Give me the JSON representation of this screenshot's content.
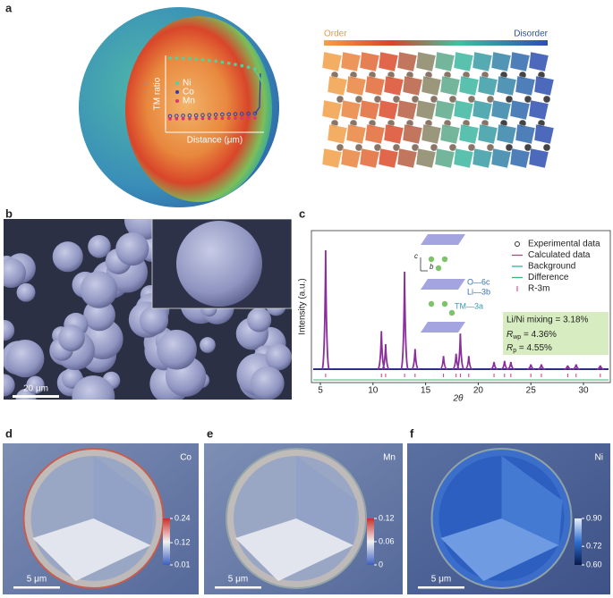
{
  "panels": {
    "a": {
      "label": "a",
      "inset": {
        "y_label": "TM ratio",
        "x_label": "Distance (μm)",
        "legend": [
          {
            "name": "Ni",
            "color": "#4fd1a0"
          },
          {
            "name": "Co",
            "color": "#2a3fb0"
          },
          {
            "name": "Mn",
            "color": "#e0307a"
          }
        ]
      },
      "gradient": {
        "left": "Order",
        "right": "Disorder"
      }
    },
    "b": {
      "label": "b",
      "scale_bar": "20 μm"
    },
    "c": {
      "label": "c",
      "y_label": "Intensity (a.u.)",
      "x_label": "2θ",
      "xlim": [
        4.15,
        32.55
      ],
      "xticks": [
        5,
        10,
        15,
        20,
        25,
        30
      ],
      "peaks": {
        "x": [
          5.5,
          10.8,
          11.2,
          13.0,
          14.0,
          16.7,
          17.9,
          18.3,
          19.1,
          21.5,
          22.5,
          23.1,
          25.0,
          26.0,
          28.5,
          29.3,
          31.6
        ],
        "intensity": [
          100,
          32,
          21,
          82,
          17,
          11,
          13,
          30,
          11,
          6,
          7,
          6,
          4,
          4,
          3,
          4,
          3
        ]
      },
      "legend": [
        {
          "name": "Experimental data",
          "color": "#333333"
        },
        {
          "name": "Calculated data",
          "color": "#e0307a"
        },
        {
          "name": "Background",
          "color": "#2bb5a8"
        },
        {
          "name": "Difference",
          "color": "#3cb371"
        },
        {
          "name": "R-3m",
          "color": "#e0307a"
        }
      ],
      "structure": {
        "axes": [
          "c",
          "b"
        ],
        "sites": [
          "O—6c",
          "Li—3b",
          "TM—3a"
        ]
      },
      "fit": {
        "mixing": "Li/Ni mixing = 3.18%",
        "rwp": {
          "symbol": "R",
          "sub": "wp",
          "text": " = 4.36%"
        },
        "rp": {
          "symbol": "R",
          "sub": "p",
          "text": " = 4.55%"
        }
      }
    },
    "d": {
      "label": "d",
      "element": "Co",
      "scale_bar": "5 μm",
      "colorbar": {
        "ticks": [
          0.24,
          0.12,
          0.01
        ]
      }
    },
    "e": {
      "label": "e",
      "element": "Mn",
      "scale_bar": "5 μm",
      "colorbar": {
        "ticks": [
          0.12,
          0.06,
          0
        ]
      }
    },
    "f": {
      "label": "f",
      "element": "Ni",
      "scale_bar": "5 μm",
      "colorbar": {
        "ticks": [
          {
            "value": 0.9,
            "label": "0.90"
          },
          0.72,
          {
            "value": 0.6,
            "label": "0.60"
          }
        ]
      }
    }
  }
}
